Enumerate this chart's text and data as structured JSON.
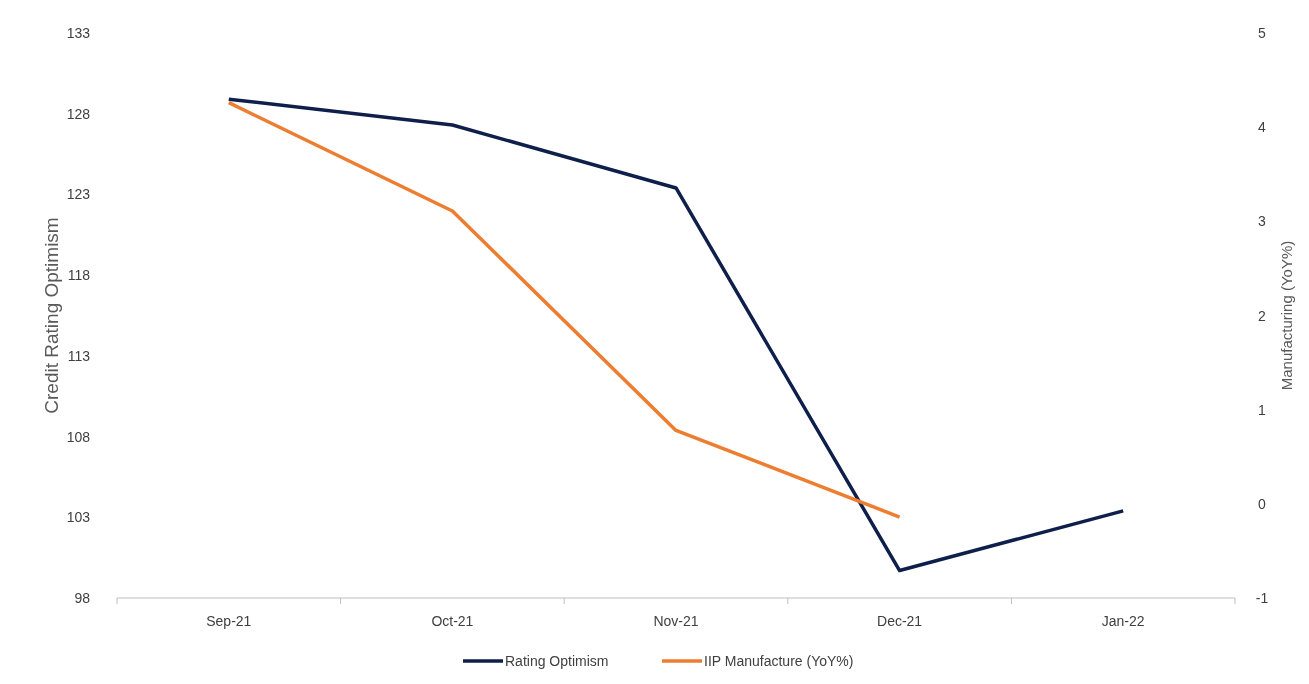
{
  "chart_data": {
    "type": "line",
    "categories": [
      "Sep-21",
      "Oct-21",
      "Nov-21",
      "Dec-21",
      "Jan-22"
    ],
    "series": [
      {
        "name": "Rating Optimism",
        "color": "#0f1f4b",
        "values": [
          128.9,
          127.3,
          123.4,
          99.7,
          103.4
        ]
      },
      {
        "name": "IIP Manufacture (YoY%)",
        "color": "#ed7d31",
        "axis": "y2",
        "values": [
          4.26,
          3.11,
          0.78,
          -0.14,
          null
        ]
      }
    ],
    "ylabel": "Credit Rating Optimism",
    "y2label": "Manufacturing (YoY%)",
    "ylim": [
      98,
      133
    ],
    "yticks": [
      98,
      103,
      108,
      113,
      118,
      123,
      128,
      133
    ],
    "y2lim": [
      -1,
      5
    ],
    "y2ticks": [
      -1,
      0,
      1,
      2,
      3,
      4,
      5
    ],
    "grid": false,
    "legend": "bottom",
    "marker": "none",
    "line_style": "solid"
  }
}
